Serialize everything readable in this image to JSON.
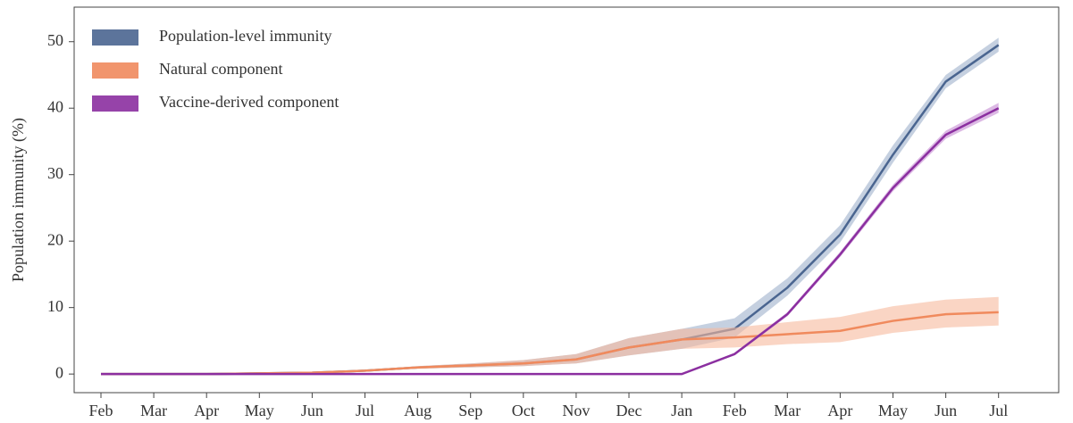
{
  "chart_data": {
    "type": "line",
    "ylabel": "Population immunity (%)",
    "categories": [
      "Feb",
      "Mar",
      "Apr",
      "May",
      "Jun",
      "Jul",
      "Aug",
      "Sep",
      "Oct",
      "Nov",
      "Dec",
      "Jan",
      "Feb",
      "Mar",
      "Apr",
      "May",
      "Jun",
      "Jul"
    ],
    "series": [
      {
        "name": "Population-level immunity",
        "color": "#4a6590",
        "band_color": "#9fb0cc",
        "values": [
          0,
          0,
          0,
          0.1,
          0.2,
          0.5,
          1.0,
          1.3,
          1.6,
          2.2,
          4,
          5.2,
          6.8,
          13,
          21,
          33,
          44,
          49.5
        ],
        "lower": [
          0,
          0,
          0,
          0.1,
          0.2,
          0.4,
          0.8,
          1.0,
          1.2,
          1.6,
          2.8,
          3.8,
          5.5,
          11.8,
          19.8,
          31.8,
          43,
          48.5
        ],
        "upper": [
          0,
          0,
          0,
          0.2,
          0.3,
          0.6,
          1.2,
          1.6,
          2.1,
          3.0,
          5.4,
          6.8,
          8.4,
          14.4,
          22.4,
          34.4,
          45,
          50.6
        ]
      },
      {
        "name": "Natural component",
        "color": "#f08a5d",
        "band_color": "#f6b99c",
        "values": [
          0,
          0,
          0,
          0.1,
          0.2,
          0.5,
          1.0,
          1.3,
          1.6,
          2.2,
          4,
          5.2,
          5.5,
          6,
          6.5,
          8,
          9,
          9.3
        ],
        "lower": [
          0,
          0,
          0,
          0.1,
          0.2,
          0.4,
          0.8,
          1.0,
          1.2,
          1.6,
          2.8,
          3.8,
          4.0,
          4.5,
          4.8,
          6.2,
          7.0,
          7.3
        ],
        "upper": [
          0,
          0,
          0,
          0.2,
          0.3,
          0.6,
          1.2,
          1.6,
          2.1,
          3.0,
          5.4,
          6.8,
          7.0,
          7.8,
          8.6,
          10.2,
          11.2,
          11.6
        ]
      },
      {
        "name": "Vaccine-derived component",
        "color": "#8b2fa0",
        "band_color": "#c58ad2",
        "values": [
          0,
          0,
          0,
          0,
          0,
          0,
          0,
          0,
          0,
          0,
          0,
          0,
          3,
          9,
          18,
          28,
          36,
          40
        ],
        "lower": [
          0,
          0,
          0,
          0,
          0,
          0,
          0,
          0,
          0,
          0,
          0,
          0,
          2.8,
          8.7,
          17.6,
          27.5,
          35.4,
          39.3
        ],
        "upper": [
          0,
          0,
          0,
          0,
          0,
          0,
          0,
          0,
          0,
          0,
          0,
          0,
          3.2,
          9.3,
          18.4,
          28.5,
          36.6,
          40.8
        ]
      }
    ],
    "ylim": [
      -2.8,
      55.2
    ],
    "yticks": [
      0,
      10,
      20,
      30,
      40,
      50
    ],
    "legend": "upper left",
    "grid": false
  }
}
